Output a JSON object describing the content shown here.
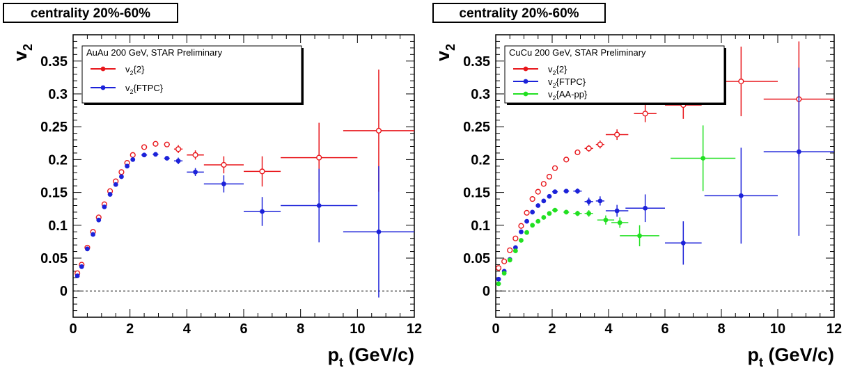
{
  "chart_data": [
    {
      "type": "scatter",
      "title": "centrality 20%-60%",
      "xlabel": "p",
      "xlabel_sub": "t",
      "xlabel_unit": " (GeV/c)",
      "ylabel": "v",
      "ylabel_sub": "2",
      "xlim": [
        0,
        12
      ],
      "ylim": [
        -0.04,
        0.39
      ],
      "xticks": [
        "0",
        "2",
        "4",
        "6",
        "8",
        "10",
        "12"
      ],
      "yticks": [
        "0",
        "0.05",
        "0.1",
        "0.15",
        "0.2",
        "0.25",
        "0.3",
        "0.35"
      ],
      "legend_title": "AuAu 200 GeV, STAR Preliminary",
      "legend_position": "top-left",
      "reference_line": 0,
      "series": [
        {
          "name": "v2{2}",
          "label_main": "v",
          "label_sub": "2",
          "label_tail": "{2}",
          "color": "#e8161b",
          "marker": "open-circle",
          "points": [
            {
              "x": 0.15,
              "y": 0.027,
              "xerr": 0.0,
              "yerr": 0.0
            },
            {
              "x": 0.3,
              "y": 0.04,
              "xerr": 0.05,
              "yerr": 0.0
            },
            {
              "x": 0.5,
              "y": 0.066,
              "xerr": 0.05,
              "yerr": 0.0
            },
            {
              "x": 0.7,
              "y": 0.09,
              "xerr": 0.05,
              "yerr": 0.0
            },
            {
              "x": 0.9,
              "y": 0.112,
              "xerr": 0.05,
              "yerr": 0.0
            },
            {
              "x": 1.1,
              "y": 0.132,
              "xerr": 0.05,
              "yerr": 0.0
            },
            {
              "x": 1.3,
              "y": 0.152,
              "xerr": 0.05,
              "yerr": 0.0
            },
            {
              "x": 1.5,
              "y": 0.167,
              "xerr": 0.05,
              "yerr": 0.0
            },
            {
              "x": 1.7,
              "y": 0.181,
              "xerr": 0.05,
              "yerr": 0.0
            },
            {
              "x": 1.9,
              "y": 0.195,
              "xerr": 0.05,
              "yerr": 0.0
            },
            {
              "x": 2.1,
              "y": 0.207,
              "xerr": 0.05,
              "yerr": 0.0
            },
            {
              "x": 2.5,
              "y": 0.219,
              "xerr": 0.1,
              "yerr": 0.0
            },
            {
              "x": 2.9,
              "y": 0.224,
              "xerr": 0.1,
              "yerr": 0.0
            },
            {
              "x": 3.3,
              "y": 0.223,
              "xerr": 0.1,
              "yerr": 0.0
            },
            {
              "x": 3.7,
              "y": 0.216,
              "xerr": 0.15,
              "yerr": 0.006
            },
            {
              "x": 4.3,
              "y": 0.207,
              "xerr": 0.3,
              "yerr": 0.007
            },
            {
              "x": 5.3,
              "y": 0.192,
              "xerr": 0.7,
              "yerr": 0.013
            },
            {
              "x": 6.65,
              "y": 0.182,
              "xerr": 0.65,
              "yerr": 0.023
            },
            {
              "x": 8.65,
              "y": 0.203,
              "xerr": 1.35,
              "yerr": 0.053
            },
            {
              "x": 10.75,
              "y": 0.244,
              "xerr": 1.25,
              "yerr": 0.093
            }
          ]
        },
        {
          "name": "v2{FTPC}",
          "label_main": "v",
          "label_sub": "2",
          "label_tail": "{FTPC}",
          "color": "#1c22d9",
          "marker": "filled-circle",
          "points": [
            {
              "x": 0.15,
              "y": 0.023,
              "xerr": 0.0,
              "yerr": 0.0
            },
            {
              "x": 0.3,
              "y": 0.037,
              "xerr": 0.05,
              "yerr": 0.0
            },
            {
              "x": 0.5,
              "y": 0.064,
              "xerr": 0.05,
              "yerr": 0.0
            },
            {
              "x": 0.7,
              "y": 0.086,
              "xerr": 0.05,
              "yerr": 0.0
            },
            {
              "x": 0.9,
              "y": 0.108,
              "xerr": 0.05,
              "yerr": 0.0
            },
            {
              "x": 1.1,
              "y": 0.128,
              "xerr": 0.05,
              "yerr": 0.0
            },
            {
              "x": 1.3,
              "y": 0.147,
              "xerr": 0.05,
              "yerr": 0.0
            },
            {
              "x": 1.5,
              "y": 0.162,
              "xerr": 0.05,
              "yerr": 0.0
            },
            {
              "x": 1.7,
              "y": 0.174,
              "xerr": 0.05,
              "yerr": 0.0
            },
            {
              "x": 1.9,
              "y": 0.19,
              "xerr": 0.05,
              "yerr": 0.0
            },
            {
              "x": 2.1,
              "y": 0.2,
              "xerr": 0.05,
              "yerr": 0.0
            },
            {
              "x": 2.5,
              "y": 0.207,
              "xerr": 0.1,
              "yerr": 0.0
            },
            {
              "x": 2.9,
              "y": 0.208,
              "xerr": 0.1,
              "yerr": 0.0
            },
            {
              "x": 3.3,
              "y": 0.202,
              "xerr": 0.1,
              "yerr": 0.0
            },
            {
              "x": 3.7,
              "y": 0.198,
              "xerr": 0.15,
              "yerr": 0.005
            },
            {
              "x": 4.3,
              "y": 0.181,
              "xerr": 0.3,
              "yerr": 0.006
            },
            {
              "x": 5.3,
              "y": 0.163,
              "xerr": 0.7,
              "yerr": 0.013
            },
            {
              "x": 6.65,
              "y": 0.121,
              "xerr": 0.65,
              "yerr": 0.022
            },
            {
              "x": 8.65,
              "y": 0.13,
              "xerr": 1.35,
              "yerr": 0.056
            },
            {
              "x": 10.75,
              "y": 0.09,
              "xerr": 1.25,
              "yerr": 0.1
            }
          ]
        }
      ]
    },
    {
      "type": "scatter",
      "title": "centrality 20%-60%",
      "xlabel": "p",
      "xlabel_sub": "t",
      "xlabel_unit": " (GeV/c)",
      "ylabel": "v",
      "ylabel_sub": "2",
      "xlim": [
        0,
        12
      ],
      "ylim": [
        -0.04,
        0.39
      ],
      "xticks": [
        "0",
        "2",
        "4",
        "6",
        "8",
        "10",
        "12"
      ],
      "yticks": [
        "0",
        "0.05",
        "0.1",
        "0.15",
        "0.2",
        "0.25",
        "0.3",
        "0.35"
      ],
      "legend_title": "CuCu 200 GeV, STAR Preliminary",
      "legend_position": "top-left",
      "reference_line": 0,
      "series": [
        {
          "name": "v2{2}",
          "label_main": "v",
          "label_sub": "2",
          "label_tail": "{2}",
          "color": "#e8161b",
          "marker": "open-circle",
          "points": [
            {
              "x": 0.1,
              "y": 0.035,
              "xerr": 0.0,
              "yerr": 0.0
            },
            {
              "x": 0.3,
              "y": 0.045,
              "xerr": 0.05,
              "yerr": 0.0
            },
            {
              "x": 0.5,
              "y": 0.062,
              "xerr": 0.05,
              "yerr": 0.0
            },
            {
              "x": 0.7,
              "y": 0.08,
              "xerr": 0.05,
              "yerr": 0.0
            },
            {
              "x": 0.9,
              "y": 0.099,
              "xerr": 0.05,
              "yerr": 0.0
            },
            {
              "x": 1.1,
              "y": 0.119,
              "xerr": 0.05,
              "yerr": 0.0
            },
            {
              "x": 1.3,
              "y": 0.14,
              "xerr": 0.05,
              "yerr": 0.0
            },
            {
              "x": 1.5,
              "y": 0.151,
              "xerr": 0.05,
              "yerr": 0.0
            },
            {
              "x": 1.7,
              "y": 0.163,
              "xerr": 0.05,
              "yerr": 0.0
            },
            {
              "x": 1.9,
              "y": 0.174,
              "xerr": 0.05,
              "yerr": 0.0
            },
            {
              "x": 2.1,
              "y": 0.187,
              "xerr": 0.1,
              "yerr": 0.0
            },
            {
              "x": 2.5,
              "y": 0.2,
              "xerr": 0.1,
              "yerr": 0.0
            },
            {
              "x": 2.9,
              "y": 0.211,
              "xerr": 0.1,
              "yerr": 0.0
            },
            {
              "x": 3.3,
              "y": 0.217,
              "xerr": 0.15,
              "yerr": 0.005
            },
            {
              "x": 3.7,
              "y": 0.223,
              "xerr": 0.15,
              "yerr": 0.006
            },
            {
              "x": 4.3,
              "y": 0.238,
              "xerr": 0.4,
              "yerr": 0.008
            },
            {
              "x": 5.3,
              "y": 0.27,
              "xerr": 0.4,
              "yerr": 0.013
            },
            {
              "x": 6.65,
              "y": 0.283,
              "xerr": 0.65,
              "yerr": 0.021
            },
            {
              "x": 8.7,
              "y": 0.319,
              "xerr": 1.3,
              "yerr": 0.053
            },
            {
              "x": 10.75,
              "y": 0.292,
              "xerr": 1.25,
              "yerr": 0.088
            }
          ]
        },
        {
          "name": "v2{FTPC}",
          "label_main": "v",
          "label_sub": "2",
          "label_tail": "{FTPC}",
          "color": "#1c22d9",
          "marker": "filled-circle",
          "points": [
            {
              "x": 0.1,
              "y": 0.018,
              "xerr": 0.0,
              "yerr": 0.0
            },
            {
              "x": 0.3,
              "y": 0.03,
              "xerr": 0.05,
              "yerr": 0.0
            },
            {
              "x": 0.5,
              "y": 0.048,
              "xerr": 0.05,
              "yerr": 0.0
            },
            {
              "x": 0.7,
              "y": 0.066,
              "xerr": 0.05,
              "yerr": 0.0
            },
            {
              "x": 0.9,
              "y": 0.09,
              "xerr": 0.05,
              "yerr": 0.0
            },
            {
              "x": 1.1,
              "y": 0.106,
              "xerr": 0.05,
              "yerr": 0.0
            },
            {
              "x": 1.3,
              "y": 0.12,
              "xerr": 0.05,
              "yerr": 0.0
            },
            {
              "x": 1.5,
              "y": 0.13,
              "xerr": 0.05,
              "yerr": 0.0
            },
            {
              "x": 1.7,
              "y": 0.137,
              "xerr": 0.05,
              "yerr": 0.0
            },
            {
              "x": 1.9,
              "y": 0.144,
              "xerr": 0.05,
              "yerr": 0.0
            },
            {
              "x": 2.1,
              "y": 0.151,
              "xerr": 0.1,
              "yerr": 0.0
            },
            {
              "x": 2.5,
              "y": 0.152,
              "xerr": 0.1,
              "yerr": 0.0
            },
            {
              "x": 2.9,
              "y": 0.152,
              "xerr": 0.15,
              "yerr": 0.004
            },
            {
              "x": 3.3,
              "y": 0.136,
              "xerr": 0.15,
              "yerr": 0.006
            },
            {
              "x": 3.7,
              "y": 0.137,
              "xerr": 0.15,
              "yerr": 0.007
            },
            {
              "x": 4.3,
              "y": 0.122,
              "xerr": 0.4,
              "yerr": 0.009
            },
            {
              "x": 5.3,
              "y": 0.126,
              "xerr": 0.7,
              "yerr": 0.021
            },
            {
              "x": 6.65,
              "y": 0.073,
              "xerr": 0.65,
              "yerr": 0.033
            },
            {
              "x": 8.7,
              "y": 0.145,
              "xerr": 1.3,
              "yerr": 0.073
            },
            {
              "x": 10.75,
              "y": 0.212,
              "xerr": 1.25,
              "yerr": 0.128
            }
          ]
        },
        {
          "name": "v2{AA-pp}",
          "label_main": "v",
          "label_sub": "2",
          "label_tail": "{AA-pp}",
          "color": "#22e022",
          "marker": "filled-circle",
          "points": [
            {
              "x": 0.1,
              "y": 0.011,
              "xerr": 0.0,
              "yerr": 0.0
            },
            {
              "x": 0.3,
              "y": 0.027,
              "xerr": 0.05,
              "yerr": 0.0
            },
            {
              "x": 0.5,
              "y": 0.047,
              "xerr": 0.05,
              "yerr": 0.0
            },
            {
              "x": 0.7,
              "y": 0.061,
              "xerr": 0.05,
              "yerr": 0.0
            },
            {
              "x": 0.9,
              "y": 0.077,
              "xerr": 0.05,
              "yerr": 0.0
            },
            {
              "x": 1.1,
              "y": 0.089,
              "xerr": 0.05,
              "yerr": 0.0
            },
            {
              "x": 1.3,
              "y": 0.1,
              "xerr": 0.05,
              "yerr": 0.0
            },
            {
              "x": 1.5,
              "y": 0.106,
              "xerr": 0.05,
              "yerr": 0.0
            },
            {
              "x": 1.7,
              "y": 0.112,
              "xerr": 0.05,
              "yerr": 0.0
            },
            {
              "x": 1.9,
              "y": 0.118,
              "xerr": 0.05,
              "yerr": 0.0
            },
            {
              "x": 2.1,
              "y": 0.123,
              "xerr": 0.1,
              "yerr": 0.0
            },
            {
              "x": 2.5,
              "y": 0.12,
              "xerr": 0.1,
              "yerr": 0.0
            },
            {
              "x": 2.9,
              "y": 0.118,
              "xerr": 0.15,
              "yerr": 0.004
            },
            {
              "x": 3.3,
              "y": 0.118,
              "xerr": 0.15,
              "yerr": 0.005
            },
            {
              "x": 3.9,
              "y": 0.108,
              "xerr": 0.3,
              "yerr": 0.007
            },
            {
              "x": 4.4,
              "y": 0.104,
              "xerr": 0.3,
              "yerr": 0.008
            },
            {
              "x": 5.1,
              "y": 0.084,
              "xerr": 0.7,
              "yerr": 0.016
            },
            {
              "x": 7.35,
              "y": 0.202,
              "xerr": 1.15,
              "yerr": 0.05
            }
          ]
        }
      ]
    }
  ]
}
